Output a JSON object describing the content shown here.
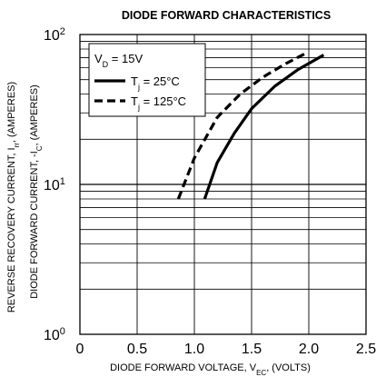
{
  "chart_data": {
    "type": "line",
    "title": "DIODE FORWARD CHARACTERISTICS",
    "xlabel": {
      "main": "DIODE FORWARD VOLTAGE, V",
      "sub": "EC",
      "tail": ", (VOLTS)"
    },
    "ylabel_inner": {
      "main": "DIODE FORWARD CURRENT, -I",
      "sub": "C",
      "tail": ", (AMPERES)"
    },
    "ylabel_outer": {
      "main": "REVERSE RECOVERY CURRENT, I",
      "sub": "rr",
      "tail": ", (AMPERES)"
    },
    "x_ticks": [
      "0",
      "0.5",
      "1.0",
      "1.5",
      "2.0",
      "2.5"
    ],
    "xlim": [
      0,
      2.5
    ],
    "ylim": [
      1,
      100
    ],
    "y_scale": "log",
    "y_ticks": [
      {
        "value": 1,
        "base": "10",
        "exp": "0"
      },
      {
        "value": 10,
        "base": "10",
        "exp": "1"
      },
      {
        "value": 100,
        "base": "10",
        "exp": "2"
      }
    ],
    "grid": true,
    "legend_header": {
      "main": "V",
      "sub": "D",
      "tail": " = 15V"
    },
    "series": [
      {
        "label_main": "T",
        "label_sub": "j",
        "label_tail": " = 25°C",
        "style": "solid",
        "points": [
          [
            1.09,
            8
          ],
          [
            1.2,
            14
          ],
          [
            1.35,
            22
          ],
          [
            1.5,
            32
          ],
          [
            1.7,
            45
          ],
          [
            1.9,
            58
          ],
          [
            2.13,
            73
          ]
        ]
      },
      {
        "label_main": "T",
        "label_sub": "j",
        "label_tail": " = 125°C",
        "style": "dashed",
        "points": [
          [
            0.86,
            8
          ],
          [
            1.0,
            15
          ],
          [
            1.2,
            28
          ],
          [
            1.4,
            40
          ],
          [
            1.6,
            52
          ],
          [
            1.8,
            64
          ],
          [
            1.96,
            74
          ]
        ]
      }
    ]
  }
}
